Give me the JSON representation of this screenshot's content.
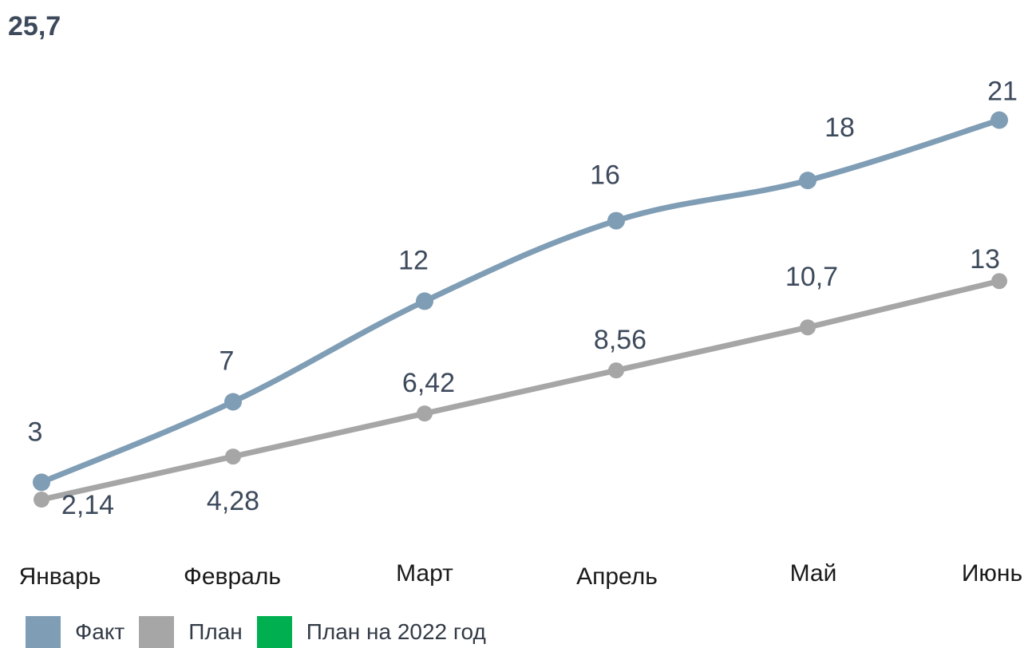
{
  "chart_data": {
    "type": "line",
    "top_left_label": "25,7",
    "categories": [
      "Январь",
      "Февраль",
      "Март",
      "Апрель",
      "Май",
      "Июнь"
    ],
    "series": [
      {
        "name": "Факт",
        "values": [
          3,
          7,
          12,
          16,
          18,
          21
        ],
        "labels": [
          "3",
          "7",
          "12",
          "16",
          "18",
          "21"
        ],
        "color": "#7f9db5",
        "smooth": true
      },
      {
        "name": "План",
        "values": [
          2.14,
          4.28,
          6.42,
          8.56,
          10.7,
          13
        ],
        "labels": [
          "2,14",
          "4,28",
          "6,42",
          "8,56",
          "10,7",
          "13"
        ],
        "color": "#a6a6a6",
        "smooth": false
      }
    ],
    "legend": [
      {
        "name": "Факт",
        "color": "#7f9db5"
      },
      {
        "name": "План",
        "color": "#a6a6a6"
      },
      {
        "name": "План на 2022 год",
        "color": "#00b050"
      }
    ],
    "ylim": [
      0,
      25.7
    ],
    "grid": false,
    "legend_position": "bottom-left",
    "label_color": "#3d4a5c"
  }
}
